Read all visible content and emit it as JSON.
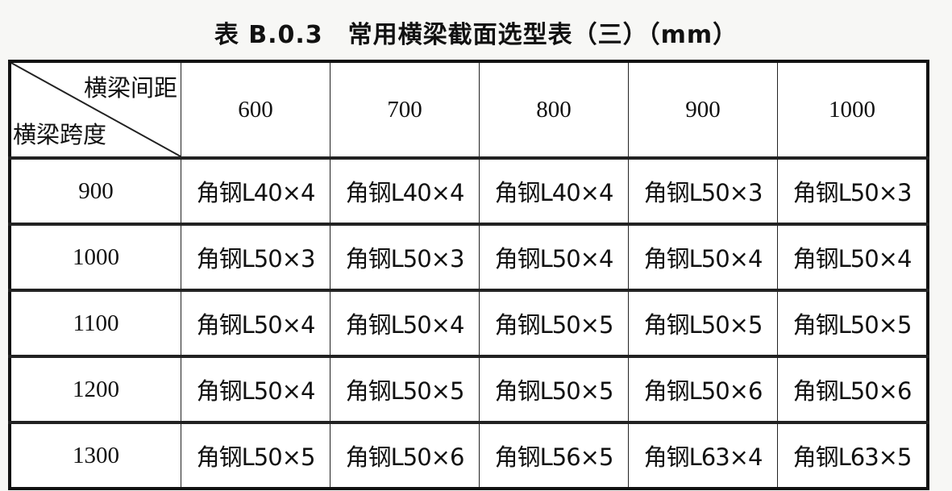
{
  "title": "表 B.0.3　常用横梁截面选型表（三）（mm）",
  "header": {
    "corner_top": "横梁间距",
    "corner_bottom": "横梁跨度",
    "columns": [
      "600",
      "700",
      "800",
      "900",
      "1000"
    ]
  },
  "rows": [
    {
      "span": "900",
      "cells": [
        "角钢L40×4",
        "角钢L40×4",
        "角钢L40×4",
        "角钢L50×3",
        "角钢L50×3"
      ]
    },
    {
      "span": "1000",
      "cells": [
        "角钢L50×3",
        "角钢L50×3",
        "角钢L50×4",
        "角钢L50×4",
        "角钢L50×4"
      ]
    },
    {
      "span": "1100",
      "cells": [
        "角钢L50×4",
        "角钢L50×4",
        "角钢L50×5",
        "角钢L50×5",
        "角钢L50×5"
      ]
    },
    {
      "span": "1200",
      "cells": [
        "角钢L50×4",
        "角钢L50×5",
        "角钢L50×5",
        "角钢L50×6",
        "角钢L50×6"
      ]
    },
    {
      "span": "1300",
      "cells": [
        "角钢L50×5",
        "角钢L50×6",
        "角钢L56×5",
        "角钢L63×4",
        "角钢L63×5"
      ]
    }
  ]
}
